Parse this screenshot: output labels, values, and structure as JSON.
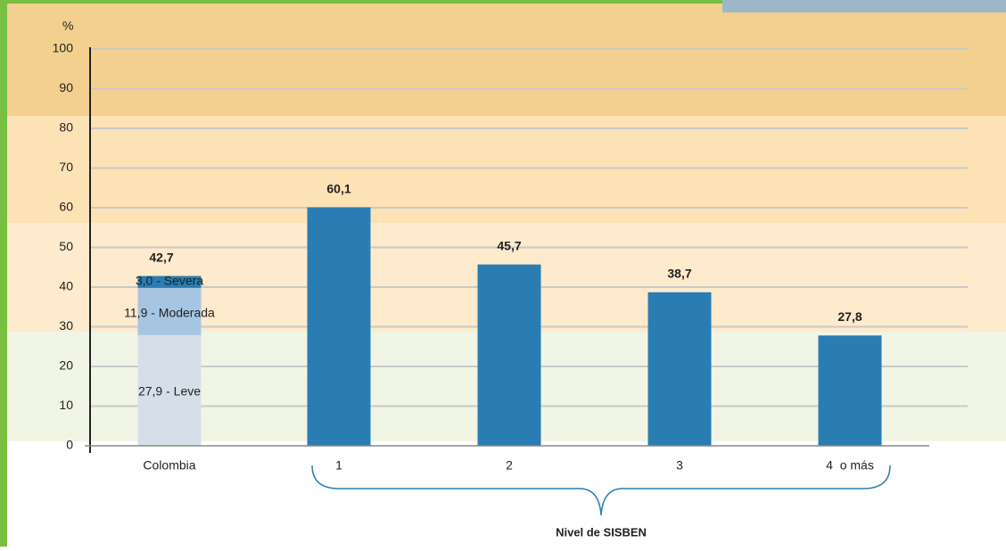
{
  "chart_data": {
    "type": "bar",
    "y_label": "%",
    "x_group_label": "Nivel de SISBEN",
    "categories": [
      "Colombia",
      "1",
      "2",
      "3",
      "4  o más"
    ],
    "values": [
      42.7,
      60.1,
      45.7,
      38.7,
      27.8
    ],
    "value_labels": [
      "42,7",
      "60,1",
      "45,7",
      "38,7",
      "27,8"
    ],
    "color": "#2a7db2",
    "segments": [
      {
        "name": "Leve",
        "value": 27.9,
        "label": "27,9 - Leve",
        "color": "#d6dfe9"
      },
      {
        "name": "Moderada",
        "value": 11.9,
        "label": "11,9 -  Moderada",
        "color": "#a6c5e2"
      },
      {
        "name": "Severa",
        "value": 3.0,
        "label": "3,0 - Severa",
        "color": "#2a7db2"
      }
    ],
    "ylim": [
      0,
      100
    ],
    "yticks": [
      0,
      10,
      20,
      30,
      40,
      50,
      60,
      70,
      80,
      90,
      100
    ],
    "grid": true
  }
}
